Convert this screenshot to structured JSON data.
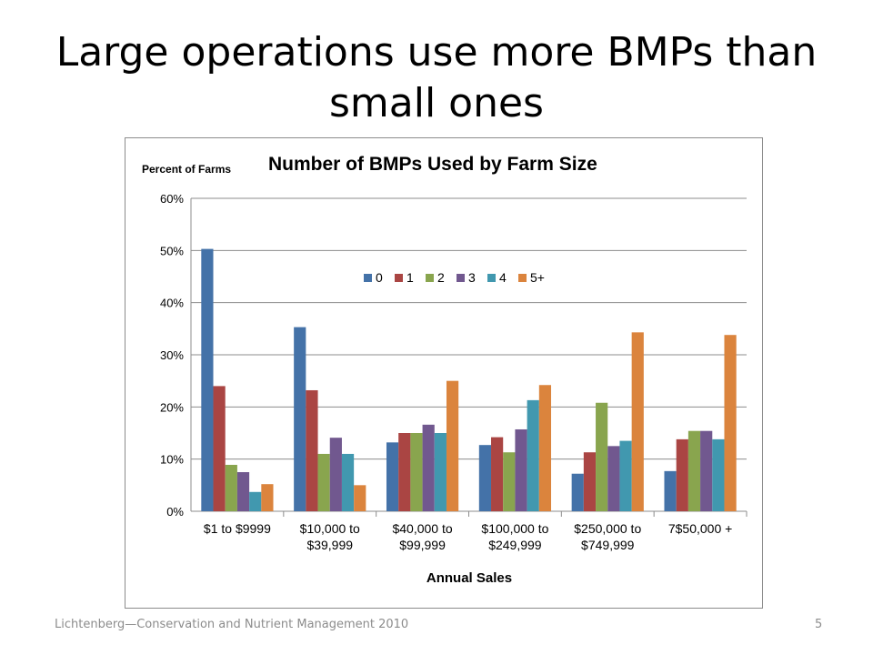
{
  "slide": {
    "title": "Large operations use more BMPs than small ones",
    "footer": "Lichtenberg—Conservation and Nutrient Management 2010",
    "page_number": "5"
  },
  "chart_data": {
    "type": "bar",
    "title": "Number of BMPs Used by Farm Size",
    "ylabel": "Percent of Farms",
    "xlabel": "Annual Sales",
    "ylim": [
      0,
      60
    ],
    "yticks": [
      "0%",
      "10%",
      "20%",
      "30%",
      "40%",
      "50%",
      "60%"
    ],
    "grid": true,
    "legend_position": "top-center",
    "categories": [
      [
        "$1 to $9999"
      ],
      [
        "$10,000 to",
        "$39,999"
      ],
      [
        "$40,000 to",
        "$99,999"
      ],
      [
        "$100,000 to",
        "$249,999"
      ],
      [
        "$250,000 to",
        "$749,999"
      ],
      [
        "7$50,000 +"
      ]
    ],
    "series": [
      {
        "name": "0",
        "color": "#4472a8",
        "values": [
          50.3,
          35.3,
          13.2,
          12.7,
          7.2,
          7.7
        ]
      },
      {
        "name": "1",
        "color": "#aa4543",
        "values": [
          24.0,
          23.2,
          15.0,
          14.2,
          11.3,
          13.8
        ]
      },
      {
        "name": "2",
        "color": "#89a54e",
        "values": [
          8.9,
          11.0,
          15.0,
          11.3,
          20.8,
          15.4
        ]
      },
      {
        "name": "3",
        "color": "#71588f",
        "values": [
          7.5,
          14.1,
          16.6,
          15.7,
          12.5,
          15.4
        ]
      },
      {
        "name": "4",
        "color": "#4198af",
        "values": [
          3.7,
          11.0,
          15.0,
          21.3,
          13.5,
          13.8
        ]
      },
      {
        "name": "5+",
        "color": "#db843d",
        "values": [
          5.2,
          5.0,
          25.0,
          24.2,
          34.3,
          33.8
        ]
      }
    ]
  }
}
